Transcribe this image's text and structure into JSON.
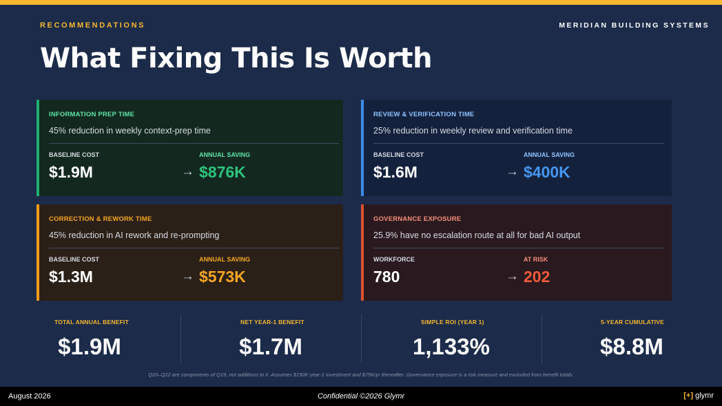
{
  "header": {
    "kicker": "RECOMMENDATIONS",
    "company": "MERIDIAN BUILDING SYSTEMS",
    "title": "What Fixing This Is Worth"
  },
  "cards": [
    {
      "title": "INFORMATION PREP TIME",
      "subtitle": "45% reduction in weekly context-prep time",
      "left_label": "BASELINE COST",
      "left_value": "$1.9M",
      "right_label": "ANNUAL SAVING",
      "right_value": "$876K",
      "accent": "#1fae6e"
    },
    {
      "title": "REVIEW & VERIFICATION TIME",
      "subtitle": "25% reduction in weekly review and verification time",
      "left_label": "BASELINE COST",
      "left_value": "$1.6M",
      "right_label": "ANNUAL SAVING",
      "right_value": "$400K",
      "accent": "#3b8be8"
    },
    {
      "title": "CORRECTION & REWORK TIME",
      "subtitle": "45% reduction in AI rework and re-prompting",
      "left_label": "BASELINE COST",
      "left_value": "$1.3M",
      "right_label": "ANNUAL SAVING",
      "right_value": "$573K",
      "accent": "#f29b1d"
    },
    {
      "title": "GOVERNANCE EXPOSURE",
      "subtitle": "25.9% have no escalation route at all for bad AI output",
      "left_label": "WORKFORCE",
      "left_value": "780",
      "right_label": "AT RISK",
      "right_value": "202",
      "accent": "#e0502f"
    }
  ],
  "arrow_icon": "arrow-right-icon",
  "arrow_glyph": "→",
  "metrics": [
    {
      "label": "TOTAL ANNUAL BENEFIT",
      "value": "$1.9M"
    },
    {
      "label": "NET YEAR-1 BENEFIT",
      "value": "$1.7M"
    },
    {
      "label": "SIMPLE ROI (YEAR 1)",
      "value": "1,133%"
    },
    {
      "label": "5-YEAR CUMULATIVE",
      "value": "$8.8M"
    }
  ],
  "footnote": "Q20–Q22 are components of Q19, not additions to it. Assumes $150K year-1 investment and $75K/yr thereafter. Governance exposure is a risk measure and excluded from benefit totals.",
  "footer": {
    "date": "August 2026",
    "confidential": "Confidential  ©2026 Glymr",
    "logo_bracket": "[+]",
    "logo_text": "glymr"
  }
}
